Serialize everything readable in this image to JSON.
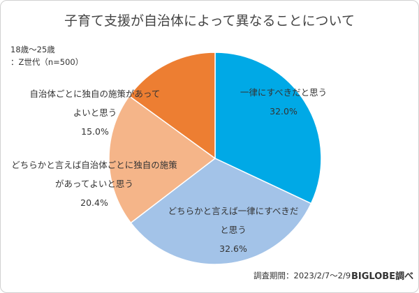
{
  "chart_data": {
    "type": "pie",
    "title": "子育て支援が自治体によって異なることについて",
    "annotations": [
      "18歳～25歳",
      "：Z世代（n=500）",
      "調査期間：2023/2/7～2/9",
      "BIGLOBE調べ"
    ],
    "categories": [
      "一律にすべきだと思う",
      "どちらかと言えば一律にすべきだと思う",
      "どちらかと言えば自治体ごとに独自の施策があってよいと思う",
      "自治体ごとに独自の施策があってよいと思う"
    ],
    "values": [
      32.0,
      32.6,
      20.4,
      15.0
    ],
    "value_labels": [
      "32.0%",
      "32.6%",
      "20.4%",
      "15.0%"
    ],
    "colors": [
      "#00a9e6",
      "#a3c3e8",
      "#f5b589",
      "#ed7e32"
    ]
  }
}
